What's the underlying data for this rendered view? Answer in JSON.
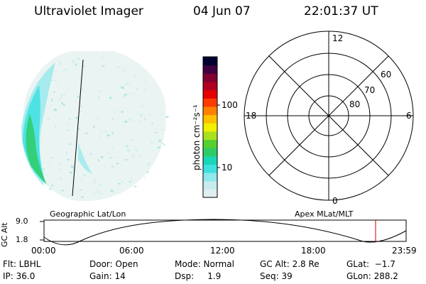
{
  "header": {
    "title": "Ultraviolet Imager",
    "date": "04 Jun 07",
    "time": "22:01:37 UT"
  },
  "colorbar": {
    "unit_label": "photon cm⁻²s⁻¹",
    "tick_100": "100",
    "tick_10": "10",
    "colors": [
      "#dfeff0",
      "#c8ebee",
      "#8fe8ec",
      "#3fe0e0",
      "#19d6b8",
      "#2ecc66",
      "#55d030",
      "#a8e020",
      "#f0f000",
      "#ffc000",
      "#ff8000",
      "#ff3c00",
      "#e60000",
      "#b00020",
      "#800030",
      "#400040",
      "#000030"
    ]
  },
  "polar": {
    "mlt_12": "12",
    "mlt_18": "18",
    "mlt_6": "6",
    "mlt_0": "0",
    "lat_60": "60",
    "lat_70": "70",
    "lat_80": "80"
  },
  "timeline": {
    "left_title": "Geographic Lat/Lon",
    "right_title": "Apex MLat/MLT",
    "axis_title": "GC Alt",
    "y_top": "9.0",
    "y_bottom": "1.8",
    "t0": "00:00",
    "t1": "06:00",
    "t2": "12:00",
    "t3": "18:00",
    "t4": "23:59",
    "marker_color": "#cc0000"
  },
  "status": {
    "flt": "Flt: LBHL",
    "ip": "IP: 36.0",
    "door": "Door: Open",
    "gain": "Gain: 14",
    "mode": "Mode: Normal",
    "dsp": "Dsp:     1.9",
    "gcalt": "GC Alt: 2.8 Re",
    "seq": "Seq: 39",
    "glat": "GLat:  −1.7",
    "glon": "GLon: 288.2"
  }
}
